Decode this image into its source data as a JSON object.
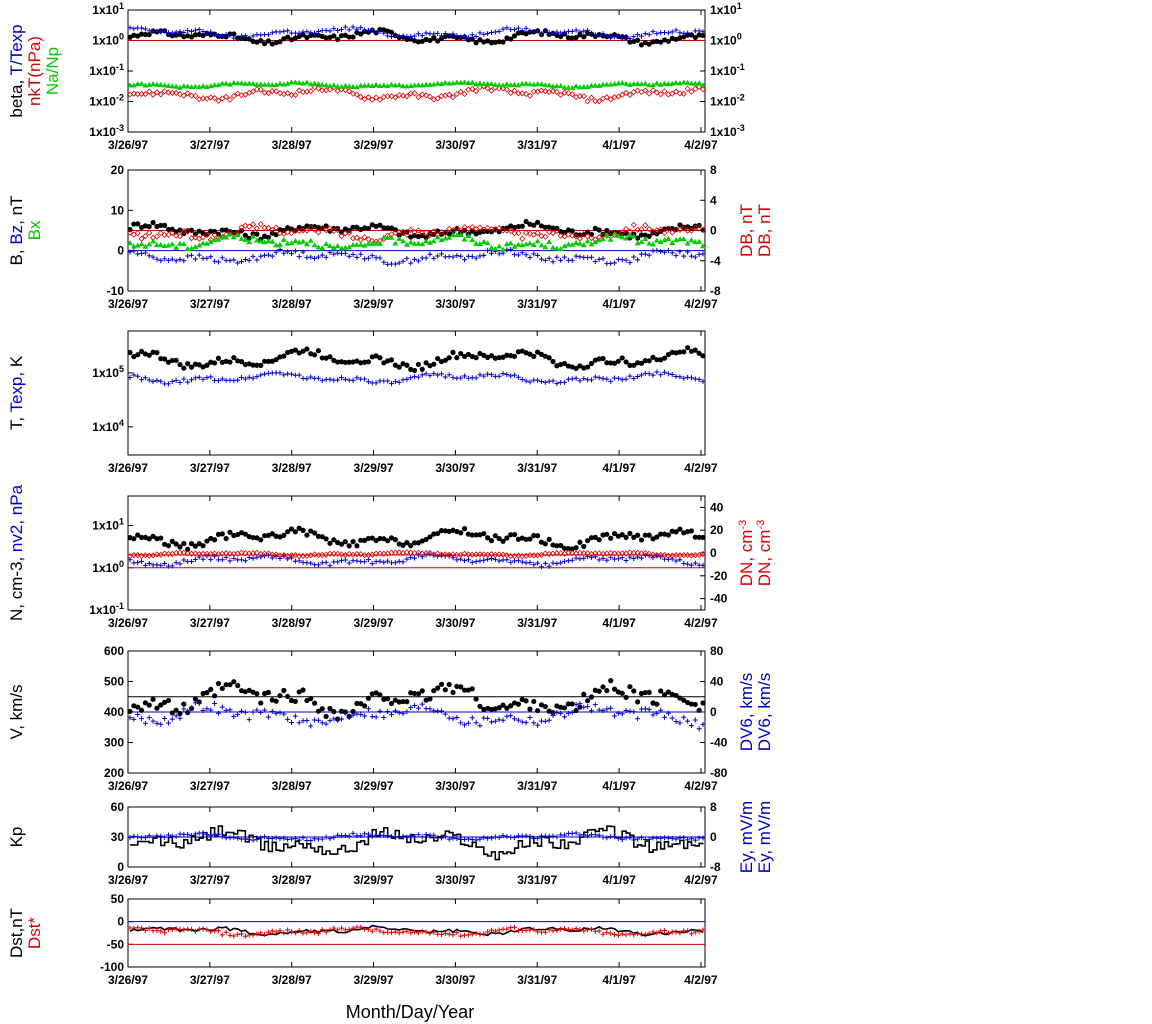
{
  "figure": {
    "xlabel": "Month/Day/Year"
  },
  "chart_data": [
    {
      "type": "scatter",
      "id": "beta",
      "left_label_parts": [
        {
          "text": "beta, ",
          "color": "#000000"
        },
        {
          "text": "T/Texp",
          "color": "#0000cc"
        },
        {
          "text": "nkT(nPa)",
          "color": "#dd0000",
          "line": 2
        },
        {
          "text": "Na/Np",
          "color": "#00cc00",
          "line": 3
        }
      ],
      "yscale": "log",
      "ylim": [
        0.001,
        10
      ],
      "yticks": [
        0.001,
        0.01,
        0.1,
        1,
        10
      ],
      "ytick_labels": [
        "1x10-3",
        "1x10-2",
        "1x10-1",
        "1x100",
        "1x101"
      ],
      "right_axis": {
        "ylim": [
          0.001,
          10
        ],
        "yscale": "log",
        "yticks": [
          0.001,
          0.01,
          0.1,
          1,
          10
        ],
        "ytick_labels": [
          "1x10-3",
          "1x10-2",
          "1x10-1",
          "1x100",
          "1x101"
        ]
      },
      "hlines": [
        {
          "y": 1,
          "color": "#cc0000"
        }
      ],
      "series": [
        {
          "marker": "dot",
          "color": "#000000",
          "base": 1.3,
          "amp": 0.25
        },
        {
          "marker": "plus",
          "color": "#0000cc",
          "base": 1.8,
          "amp": 0.2
        },
        {
          "marker": "diamond",
          "color": "#dd0000",
          "base": 0.018,
          "amp": 0.25
        },
        {
          "marker": "triangle",
          "color": "#00cc00",
          "base": 0.035,
          "amp": 0.1
        }
      ]
    },
    {
      "type": "scatter",
      "id": "field",
      "left_label_parts": [
        {
          "text": "B, ",
          "color": "#000000"
        },
        {
          "text": "Bz, ",
          "color": "#0000cc"
        },
        {
          "text": "nT",
          "color": "#000000"
        },
        {
          "text": "Bx",
          "color": "#00cc00",
          "line": 2
        }
      ],
      "right_label_parts": [
        {
          "text": "DB, nT",
          "color": "#dd0000"
        },
        {
          "text": "DB, nT",
          "color": "#dd0000",
          "line": 2
        }
      ],
      "yscale": "linear",
      "ylim": [
        -10,
        20
      ],
      "yticks": [
        -10,
        0,
        10,
        20
      ],
      "ytick_labels": [
        "-10",
        "0",
        "10",
        "20"
      ],
      "right_axis": {
        "ylim": [
          -8,
          8
        ],
        "yscale": "linear",
        "yticks": [
          -8,
          -4,
          0,
          4,
          8
        ],
        "ytick_labels": [
          "-8",
          "-4",
          "0",
          "4",
          "8"
        ]
      },
      "hlines": [
        {
          "y": 0,
          "color": "#0000cc"
        },
        {
          "y": 5,
          "color": "#cc0000"
        }
      ],
      "series": [
        {
          "marker": "dot",
          "color": "#000000",
          "base": 5,
          "amp": 2
        },
        {
          "marker": "plus",
          "color": "#0000cc",
          "base": -1.5,
          "amp": 1.8
        },
        {
          "marker": "diamond",
          "color": "#dd0000",
          "base": 4.5,
          "amp": 2
        },
        {
          "marker": "triangle",
          "color": "#00cc00",
          "base": 2,
          "amp": 2
        }
      ]
    },
    {
      "type": "scatter",
      "id": "temperature",
      "left_label_parts": [
        {
          "text": "T, ",
          "color": "#000000"
        },
        {
          "text": "Texp, ",
          "color": "#0000cc"
        },
        {
          "text": "K",
          "color": "#000000"
        }
      ],
      "yscale": "log",
      "ylim": [
        3000,
        600000
      ],
      "yticks": [
        10000,
        100000
      ],
      "ytick_labels": [
        "1x104",
        "1x105"
      ],
      "hlines": [],
      "series": [
        {
          "marker": "dot",
          "color": "#000000",
          "base": 180000,
          "amp": 0.2
        },
        {
          "marker": "plus",
          "color": "#0000cc",
          "base": 80000,
          "amp": 0.12
        }
      ]
    },
    {
      "type": "scatter",
      "id": "density",
      "left_label_parts": [
        {
          "text": "N, cm-3, ",
          "color": "#000000"
        },
        {
          "text": "nv2, nPa",
          "color": "#0000cc"
        }
      ],
      "right_label_parts": [
        {
          "text": "DN, cm-3",
          "color": "#dd0000"
        },
        {
          "text": "DN, cm-3",
          "color": "#dd0000",
          "line": 2
        }
      ],
      "yscale": "log",
      "ylim": [
        0.1,
        50
      ],
      "yticks": [
        0.1,
        1,
        10
      ],
      "ytick_labels": [
        "1x10-1",
        "1x100",
        "1x101"
      ],
      "right_axis": {
        "ylim": [
          -50,
          50
        ],
        "yscale": "linear",
        "yticks": [
          -40,
          -20,
          0,
          20,
          40
        ],
        "ytick_labels": [
          "-40",
          "-20",
          "0",
          "20",
          "40"
        ]
      },
      "hlines": [
        {
          "y": 1,
          "color": "#cc0000"
        },
        {
          "y": 2,
          "color": "#cc0000"
        }
      ],
      "series": [
        {
          "marker": "dot",
          "color": "#000000",
          "base": 5,
          "amp": 0.25
        },
        {
          "marker": "plus",
          "color": "#0000cc",
          "base": 1.5,
          "amp": 0.15
        },
        {
          "marker": "diamond",
          "color": "#dd0000",
          "base": 2.1,
          "amp": 0.05
        }
      ]
    },
    {
      "type": "scatter",
      "id": "velocity",
      "left_label_parts": [
        {
          "text": "V, km/s",
          "color": "#000000"
        }
      ],
      "right_label_parts": [
        {
          "text": "DV6, km/s",
          "color": "#0000cc"
        },
        {
          "text": "DV6, km/s",
          "color": "#0000cc",
          "line": 2
        }
      ],
      "yscale": "linear",
      "ylim": [
        200,
        600
      ],
      "yticks": [
        200,
        300,
        400,
        500,
        600
      ],
      "ytick_labels": [
        "200",
        "300",
        "400",
        "500",
        "600"
      ],
      "right_axis": {
        "ylim": [
          -80,
          80
        ],
        "yscale": "linear",
        "yticks": [
          -80,
          -40,
          0,
          40,
          80
        ],
        "ytick_labels": [
          "-80",
          "-40",
          "0",
          "40",
          "80"
        ]
      },
      "hlines": [
        {
          "y": 400,
          "color": "#0000cc"
        },
        {
          "y": 450,
          "color": "#000000"
        }
      ],
      "series": [
        {
          "marker": "dot",
          "color": "#000000",
          "base": 440,
          "amp": 60
        },
        {
          "marker": "plus",
          "color": "#0000cc",
          "base": 390,
          "amp": 40
        }
      ]
    },
    {
      "type": "line",
      "id": "kp",
      "left_label_parts": [
        {
          "text": "Kp",
          "color": "#000000"
        }
      ],
      "right_label_parts": [
        {
          "text": "Ey, mV/m",
          "color": "#0000cc"
        },
        {
          "text": "Ey, mV/m",
          "color": "#0000cc",
          "line": 2
        }
      ],
      "yscale": "linear",
      "ylim": [
        0,
        60
      ],
      "yticks": [
        0,
        30,
        60
      ],
      "ytick_labels": [
        "0",
        "30",
        "60"
      ],
      "right_axis": {
        "ylim": [
          -8,
          8
        ],
        "yscale": "linear",
        "yticks": [
          -8,
          0,
          8
        ],
        "ytick_labels": [
          "-8",
          "0",
          "8"
        ]
      },
      "hlines": [
        {
          "y": 30,
          "color": "#0000cc"
        }
      ],
      "series": [
        {
          "marker": "step",
          "color": "#000000",
          "base": 25,
          "amp": 15
        },
        {
          "marker": "plus",
          "color": "#0000cc",
          "base": 30,
          "amp": 4
        }
      ]
    },
    {
      "type": "line",
      "id": "dst",
      "left_label_parts": [
        {
          "text": "Dst,nT",
          "color": "#000000"
        },
        {
          "text": "Dst*",
          "color": "#dd0000",
          "line": 2
        }
      ],
      "yscale": "linear",
      "ylim": [
        -100,
        50
      ],
      "yticks": [
        -100,
        -50,
        0,
        50
      ],
      "ytick_labels": [
        "-100",
        "-50",
        "0",
        "50"
      ],
      "hlines": [
        {
          "y": 0,
          "color": "#0000cc"
        },
        {
          "y": -50,
          "color": "#cc0000"
        }
      ],
      "series": [
        {
          "marker": "line",
          "color": "#000000",
          "base": -20,
          "amp": 10
        },
        {
          "marker": "plus",
          "color": "#dd0000",
          "base": -22,
          "amp": 10
        }
      ]
    }
  ],
  "xaxis": {
    "ticks": [
      "3/26/97",
      "3/27/97",
      "3/28/97",
      "3/29/97",
      "3/30/97",
      "3/31/97",
      "4/1/97",
      "4/2/97"
    ]
  }
}
